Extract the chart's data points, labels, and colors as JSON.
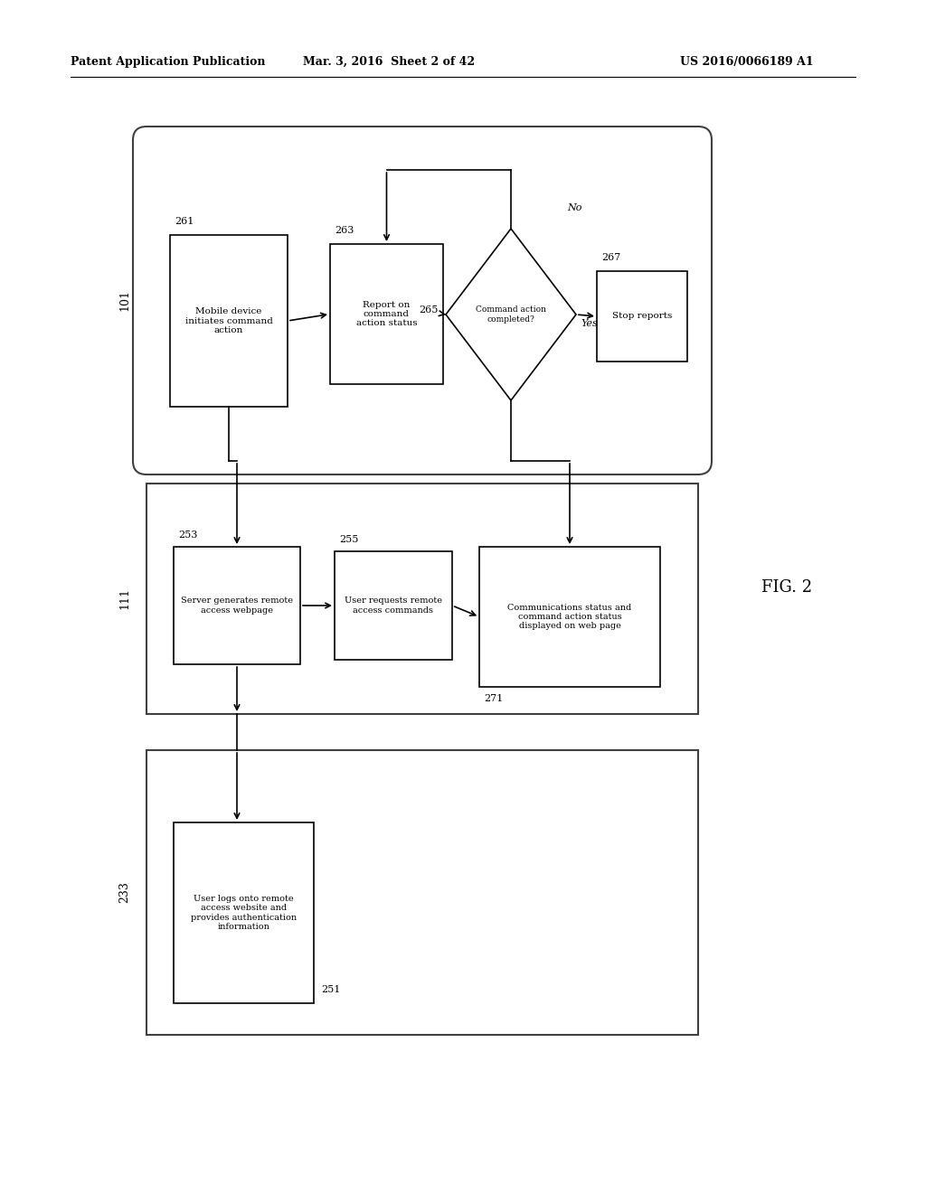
{
  "bg_color": "#ffffff",
  "header_left": "Patent Application Publication",
  "header_mid": "Mar. 3, 2016  Sheet 2 of 42",
  "header_right": "US 2016/0066189 A1",
  "fig_label": "FIG. 2",
  "box101_label": "101",
  "box111_label": "111",
  "box233_label": "233",
  "node261_label": "Mobile device\ninitiates command\naction",
  "node261_num": "261",
  "node263_label": "Report on\ncommand\naction status",
  "node263_num": "263",
  "node265_label": "Command action\ncompleted?",
  "node265_num": "265",
  "node267_label": "Stop reports",
  "node267_num": "267",
  "node253_label": "Server generates remote\naccess webpage",
  "node253_num": "253",
  "node255_label": "User requests remote\naccess commands",
  "node255_num": "255",
  "node271_label": "Communications status and\ncommand action status\ndisplayed on web page",
  "node271_num": "271",
  "node251_label": "User logs onto remote\naccess website and\nprovides authentication\ninformation",
  "node251_num": "251",
  "no_label": "No",
  "yes_label": "Yes"
}
